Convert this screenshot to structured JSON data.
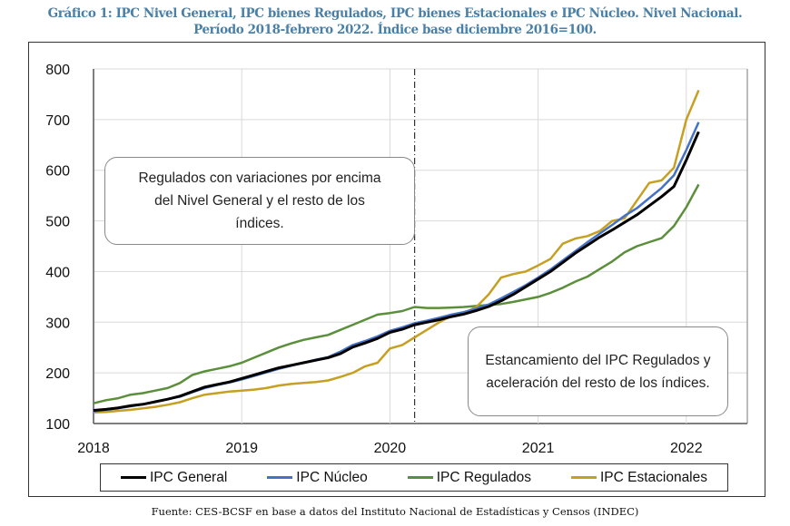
{
  "title_line1": "Gráfico 1: IPC Nivel General, IPC bienes Regulados, IPC bienes Estacionales e IPC Núcleo. Nivel Nacional.",
  "title_line2": "Período 2018-febrero 2022. Índice base diciembre 2016=100.",
  "source": "Fuente: CES-BCSF en base a datos del Instituto Nacional de Estadísticas y Censos (INDEC)",
  "chart_data": {
    "type": "line",
    "x_start": "2018-01",
    "x_end": "2022-02",
    "x_frequency": "monthly",
    "x_tick_labels": [
      "2018",
      "2019",
      "2020",
      "2021",
      "2022"
    ],
    "y_tick_labels": [
      "100",
      "200",
      "300",
      "400",
      "500",
      "600",
      "700",
      "800"
    ],
    "ylim": [
      100,
      800
    ],
    "grid": true,
    "legend_position": "bottom",
    "vertical_marker": "2020-03",
    "annotations": [
      "Regulados con variaciones por encima del Nivel General y el resto de los índices.",
      "Estancamiento del IPC Regulados y aceleración del resto de los índices."
    ],
    "series": [
      {
        "name": "IPC General",
        "color": "#000000",
        "values": [
          126,
          128,
          131,
          135,
          138,
          143,
          148,
          154,
          163,
          172,
          177,
          182,
          189,
          196,
          203,
          210,
          215,
          220,
          225,
          230,
          238,
          251,
          259,
          268,
          280,
          286,
          295,
          300,
          305,
          311,
          316,
          323,
          331,
          342,
          355,
          370,
          385,
          400,
          418,
          436,
          452,
          468,
          482,
          497,
          512,
          530,
          548,
          568,
          620,
          676
        ]
      },
      {
        "name": "IPC Núcleo",
        "color": "#4472c4",
        "values": [
          124,
          127,
          130,
          134,
          138,
          143,
          148,
          153,
          162,
          170,
          176,
          181,
          187,
          194,
          201,
          208,
          214,
          220,
          226,
          231,
          242,
          255,
          263,
          272,
          283,
          290,
          298,
          303,
          309,
          315,
          320,
          327,
          335,
          347,
          360,
          373,
          388,
          404,
          422,
          440,
          458,
          475,
          492,
          510,
          525,
          545,
          565,
          590,
          640,
          695
        ]
      },
      {
        "name": "IPC Regulados",
        "color": "#5b8f3b",
        "values": [
          140,
          146,
          150,
          157,
          160,
          165,
          170,
          180,
          196,
          203,
          208,
          213,
          220,
          230,
          240,
          250,
          258,
          265,
          270,
          275,
          285,
          295,
          305,
          315,
          318,
          322,
          330,
          328,
          328,
          329,
          330,
          332,
          334,
          336,
          340,
          345,
          350,
          358,
          368,
          380,
          390,
          405,
          420,
          438,
          450,
          458,
          466,
          490,
          527,
          572
        ]
      },
      {
        "name": "IPC Estacionales",
        "color": "#c6a023",
        "values": [
          122,
          123,
          125,
          127,
          130,
          133,
          137,
          142,
          150,
          157,
          160,
          163,
          165,
          167,
          170,
          175,
          178,
          180,
          182,
          185,
          192,
          200,
          213,
          220,
          248,
          255,
          270,
          285,
          300,
          313,
          318,
          330,
          355,
          388,
          395,
          400,
          412,
          425,
          455,
          465,
          470,
          480,
          500,
          505,
          540,
          575,
          580,
          605,
          700,
          758
        ]
      }
    ]
  }
}
